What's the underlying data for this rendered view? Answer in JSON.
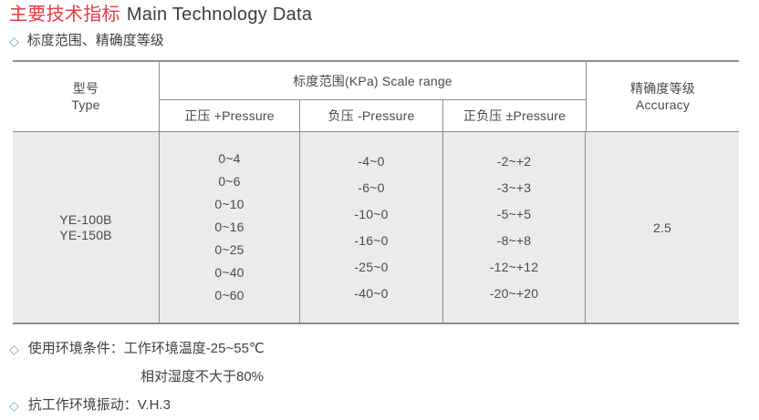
{
  "page": {
    "title_zh": "主要技术指标",
    "title_en": "Main Technology Data"
  },
  "section": {
    "bullet": "◇",
    "heading": "标度范围、精确度等级"
  },
  "table": {
    "type_header_zh": "型号",
    "type_header_en": "Type",
    "scale_range_header": "标度范围(KPa) Scale range",
    "sub_headers": [
      "正压 +Pressure",
      "负压 -Pressure",
      "正负压 ±Pressure"
    ],
    "accuracy_header_zh": "精确度等级",
    "accuracy_header_en": "Accuracy",
    "models": [
      "YE-100B",
      "YE-150B"
    ],
    "positive_pressure": [
      "0~4",
      "0~6",
      "0~10",
      "0~16",
      "0~25",
      "0~40",
      "0~60"
    ],
    "negative_pressure": [
      "-4~0",
      "-6~0",
      "-10~0",
      "-16~0",
      "-25~0",
      "-40~0"
    ],
    "plus_minus_pressure": [
      "-2~+2",
      "-3~+3",
      "-5~+5",
      "-8~+8",
      "-12~+12",
      "-20~+20"
    ],
    "accuracy_value": "2.5"
  },
  "notes": {
    "bullet": "◇",
    "line1_label": "使用环境条件：",
    "line1_value": "工作环境温度-25~55℃",
    "line2": "相对湿度不大于80%",
    "line3_label": "抗工作环境振动：",
    "line3_value": "V.H.3"
  },
  "colors": {
    "title_red": "#e8393f",
    "diamond_blue": "#5fa8d8",
    "table_body_fill": "#ebebeb",
    "border_gray": "#8d8d8d",
    "text_dark": "#404040"
  }
}
